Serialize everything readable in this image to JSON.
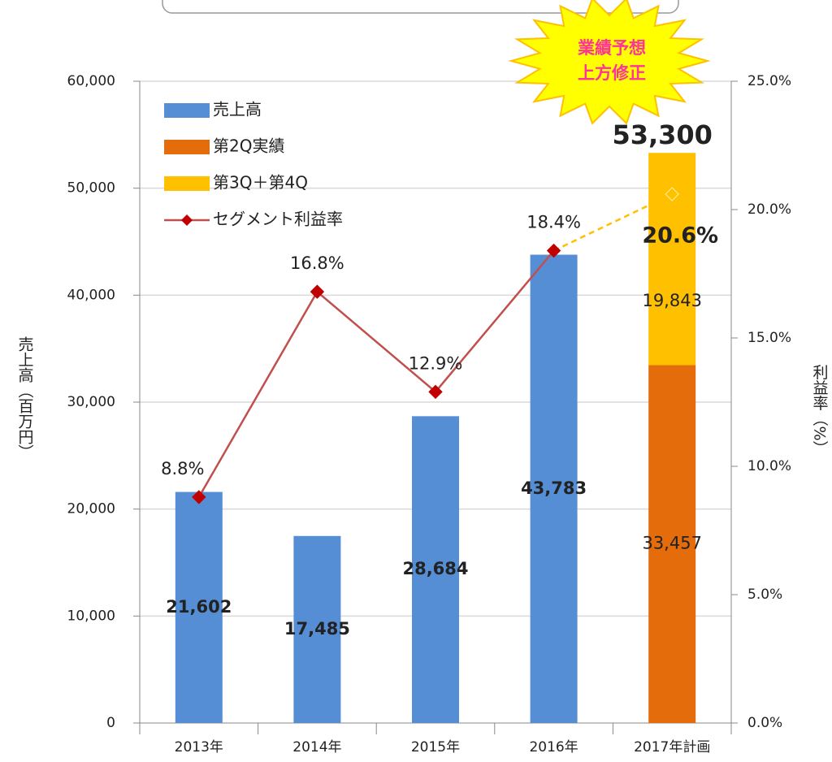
{
  "chart_data": {
    "type": "bar",
    "stacked": true,
    "categories": [
      "2013年",
      "2014年",
      "2015年",
      "2016年",
      "2017年計画"
    ],
    "series": [
      {
        "name": "売上高",
        "color": "#558ed5",
        "values": [
          21602,
          17485,
          28684,
          43783,
          null
        ],
        "value_labels": [
          "21,602",
          "17,485",
          "28,684",
          "43,783",
          null
        ],
        "label_bold": true
      },
      {
        "name": "第2Q実績",
        "color": "#e46c0a",
        "values": [
          null,
          null,
          null,
          null,
          33457
        ],
        "value_labels": [
          null,
          null,
          null,
          null,
          "33,457"
        ],
        "label_bold": false
      },
      {
        "name": "第3Q＋第4Q",
        "color": "#ffc000",
        "values": [
          null,
          null,
          null,
          null,
          19843
        ],
        "value_labels": [
          null,
          null,
          null,
          null,
          "19,843"
        ],
        "label_bold": false
      },
      {
        "name": "セグメント利益率",
        "type": "line",
        "axis": "y2",
        "color": "#c0504d",
        "marker_color": "#c00000",
        "projected": [
          false,
          false,
          false,
          false,
          true
        ],
        "projected_color": "#ffc000",
        "values": [
          8.8,
          16.8,
          12.9,
          18.4,
          20.6
        ],
        "value_labels": [
          "8.8%",
          "16.8%",
          "12.9%",
          "18.4%",
          "20.6%"
        ]
      }
    ],
    "total_label": "53,300",
    "badge": [
      "業績予想",
      "上方修正"
    ],
    "y_label": "売上高（百万円）",
    "y2_label": "利益率（%）",
    "ylim": [
      0,
      60000
    ],
    "yticks": [
      0,
      {
        "value": 10000,
        "label": "10,000"
      },
      {
        "value": 20000,
        "label": "20,000"
      },
      {
        "value": 30000,
        "label": "30,000"
      },
      {
        "value": 40000,
        "label": "40,000"
      },
      {
        "value": 50000,
        "label": "50,000"
      },
      {
        "value": 60000,
        "label": "60,000"
      }
    ],
    "y2lim": [
      0,
      25
    ],
    "y2ticks": [
      {
        "value": 0,
        "label": "0.0%"
      },
      {
        "value": 5,
        "label": "5.0%"
      },
      {
        "value": 10,
        "label": "10.0%"
      },
      {
        "value": 15,
        "label": "15.0%"
      },
      {
        "value": 20,
        "label": "20.0%"
      },
      {
        "value": 25,
        "label": "25.0%"
      }
    ],
    "grid": true,
    "legend": "upper left"
  }
}
